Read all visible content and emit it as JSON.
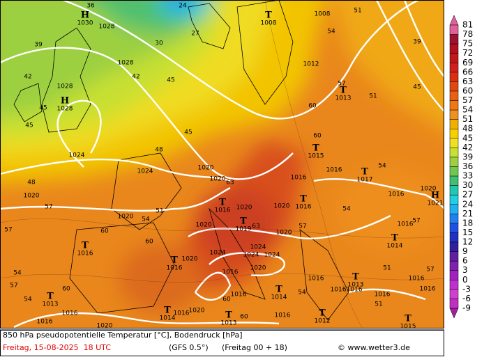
{
  "footer": {
    "title": "850 hPa pseudopotentielle Temperatur [°C], Bodendruck [hPa]",
    "date": "Freitag, 15-08-2025  18 UTC",
    "model": "(GFS 0.5°)",
    "run": "(Freitag 00 + 18)",
    "credit": "© www.wetter3.de"
  },
  "legend": {
    "levels": [
      81,
      78,
      75,
      72,
      69,
      66,
      63,
      60,
      57,
      54,
      51,
      48,
      45,
      42,
      39,
      36,
      33,
      30,
      27,
      24,
      21,
      18,
      15,
      12,
      9,
      6,
      3,
      0,
      -3,
      -6,
      -9
    ],
    "colors": [
      "#e0609a",
      "#a01030",
      "#b01020",
      "#c01818",
      "#d02020",
      "#d83010",
      "#e04810",
      "#e86010",
      "#f07810",
      "#f09020",
      "#f0b000",
      "#f8d000",
      "#f0e020",
      "#c8e030",
      "#a0d040",
      "#70c850",
      "#40c070",
      "#20c8b0",
      "#20d0e0",
      "#20b0f0",
      "#2080f0",
      "#2050e0",
      "#2030c0",
      "#3020a0",
      "#6020a0",
      "#8020b0",
      "#a020c0",
      "#c030d0",
      "#d040d0",
      "#c030c0",
      "#a020a0"
    ]
  },
  "pressure_systems": [
    {
      "type": "H",
      "pressure": "1030"
    },
    {
      "type": "T",
      "pressure": "1008"
    },
    {
      "type": "H",
      "pressure": "1028"
    },
    {
      "type": "T",
      "pressure": "1013"
    },
    {
      "type": "T",
      "pressure": "1015"
    },
    {
      "type": "T",
      "pressure": "1017"
    },
    {
      "type": "H",
      "pressure": "1021"
    },
    {
      "type": "T",
      "pressure": "1016"
    },
    {
      "type": "T",
      "pressure": "1016"
    },
    {
      "type": "T",
      "pressure": "1019"
    },
    {
      "type": "T",
      "pressure": "1016"
    },
    {
      "type": "T",
      "pressure": "1014"
    },
    {
      "type": "T",
      "pressure": "1016"
    },
    {
      "type": "T",
      "pressure": "1013"
    },
    {
      "type": "T",
      "pressure": "1013"
    },
    {
      "type": "T",
      "pressure": "1014"
    },
    {
      "type": "T",
      "pressure": "1014"
    },
    {
      "type": "T",
      "pressure": "1013"
    },
    {
      "type": "T",
      "pressure": "1012"
    },
    {
      "type": "T",
      "pressure": "1015"
    }
  ],
  "isobar_labels": [
    "1028",
    "1028",
    "1028",
    "1024",
    "1024",
    "1020",
    "1020",
    "1020",
    "1020",
    "1020",
    "1020",
    "1020",
    "1020",
    "1024",
    "1024",
    "1024",
    "1024",
    "1020",
    "1020",
    "1016",
    "1016",
    "1016",
    "1016",
    "1016",
    "1016",
    "1016",
    "1016",
    "1016",
    "1016",
    "1016",
    "1016",
    "1020",
    "1012",
    "1008",
    "1016",
    "1016",
    "1020",
    "1016",
    "1020",
    "1016"
  ],
  "isotherm_labels": [
    "39",
    "42",
    "45",
    "45",
    "48",
    "57",
    "57",
    "60",
    "54",
    "57",
    "54",
    "60",
    "42",
    "45",
    "48",
    "45",
    "30",
    "27",
    "24",
    "36",
    "54",
    "57",
    "60",
    "60",
    "54",
    "51",
    "45",
    "39",
    "51",
    "63",
    "63",
    "60",
    "60",
    "60",
    "57",
    "54",
    "51",
    "51",
    "54",
    "51",
    "54",
    "57",
    "57"
  ]
}
